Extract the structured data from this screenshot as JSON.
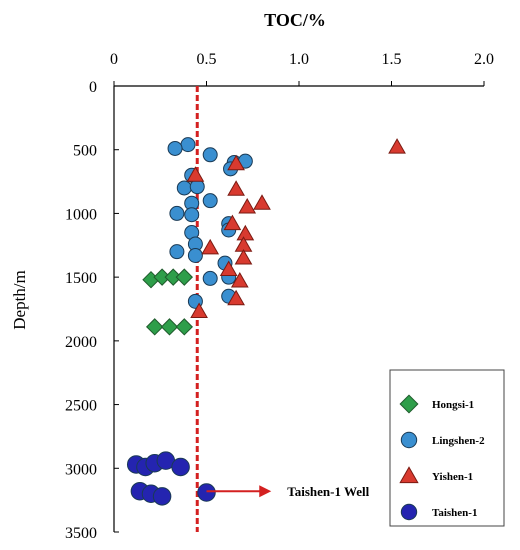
{
  "chart_data": {
    "type": "scatter",
    "title": "TOC/%",
    "ylabel": "Depth/m",
    "xlim": [
      0,
      2.0
    ],
    "ylim": [
      3500,
      0
    ],
    "x_axis_position": "top",
    "grid": false,
    "x_ticks": [
      "0",
      "0.5",
      "1.0",
      "1.5",
      "2.0"
    ],
    "x_tick_values": [
      0,
      0.5,
      1.0,
      1.5,
      2.0
    ],
    "y_ticks": [
      "0",
      "500",
      "1000",
      "1500",
      "2000",
      "2500",
      "3000",
      "3500"
    ],
    "y_tick_values": [
      0,
      500,
      1000,
      1500,
      2000,
      2500,
      3000,
      3500
    ],
    "reference_line": {
      "x": 0.45,
      "color": "#d42020"
    },
    "annotation": {
      "text": "Taishen-1 Well",
      "from": [
        0.5,
        3180
      ],
      "to": [
        0.85,
        3180
      ],
      "color": "#d42020"
    },
    "legend": {
      "position": "bottom-right"
    },
    "series": [
      {
        "name": "Hongsi-1",
        "marker": "diamond",
        "color": "#2e9e4a",
        "points": [
          [
            0.2,
            1520
          ],
          [
            0.26,
            1500
          ],
          [
            0.32,
            1500
          ],
          [
            0.38,
            1500
          ],
          [
            0.22,
            1890
          ],
          [
            0.3,
            1890
          ],
          [
            0.38,
            1890
          ]
        ]
      },
      {
        "name": "Lingshen-2",
        "marker": "circle",
        "color": "#3a8fd0",
        "points": [
          [
            0.4,
            460
          ],
          [
            0.33,
            490
          ],
          [
            0.52,
            540
          ],
          [
            0.65,
            600
          ],
          [
            0.71,
            590
          ],
          [
            0.42,
            700
          ],
          [
            0.63,
            650
          ],
          [
            0.38,
            800
          ],
          [
            0.45,
            790
          ],
          [
            0.42,
            920
          ],
          [
            0.52,
            900
          ],
          [
            0.34,
            1000
          ],
          [
            0.42,
            1010
          ],
          [
            0.62,
            1080
          ],
          [
            0.42,
            1150
          ],
          [
            0.62,
            1130
          ],
          [
            0.44,
            1240
          ],
          [
            0.34,
            1300
          ],
          [
            0.44,
            1330
          ],
          [
            0.6,
            1390
          ],
          [
            0.52,
            1510
          ],
          [
            0.62,
            1500
          ],
          [
            0.44,
            1690
          ],
          [
            0.62,
            1650
          ]
        ]
      },
      {
        "name": "Yishen-1",
        "marker": "triangle",
        "color": "#d83a2f",
        "points": [
          [
            1.53,
            480
          ],
          [
            0.66,
            610
          ],
          [
            0.44,
            700
          ],
          [
            0.66,
            810
          ],
          [
            0.8,
            920
          ],
          [
            0.72,
            950
          ],
          [
            0.64,
            1080
          ],
          [
            0.71,
            1160
          ],
          [
            0.52,
            1270
          ],
          [
            0.7,
            1250
          ],
          [
            0.7,
            1350
          ],
          [
            0.62,
            1440
          ],
          [
            0.68,
            1530
          ],
          [
            0.66,
            1670
          ],
          [
            0.46,
            1770
          ]
        ]
      },
      {
        "name": "Taishen-1",
        "marker": "circle",
        "color": "#2424b0",
        "points": [
          [
            0.12,
            2970
          ],
          [
            0.17,
            2990
          ],
          [
            0.22,
            2960
          ],
          [
            0.28,
            2940
          ],
          [
            0.36,
            2990
          ],
          [
            0.14,
            3180
          ],
          [
            0.2,
            3200
          ],
          [
            0.26,
            3220
          ],
          [
            0.5,
            3190
          ]
        ]
      }
    ]
  }
}
